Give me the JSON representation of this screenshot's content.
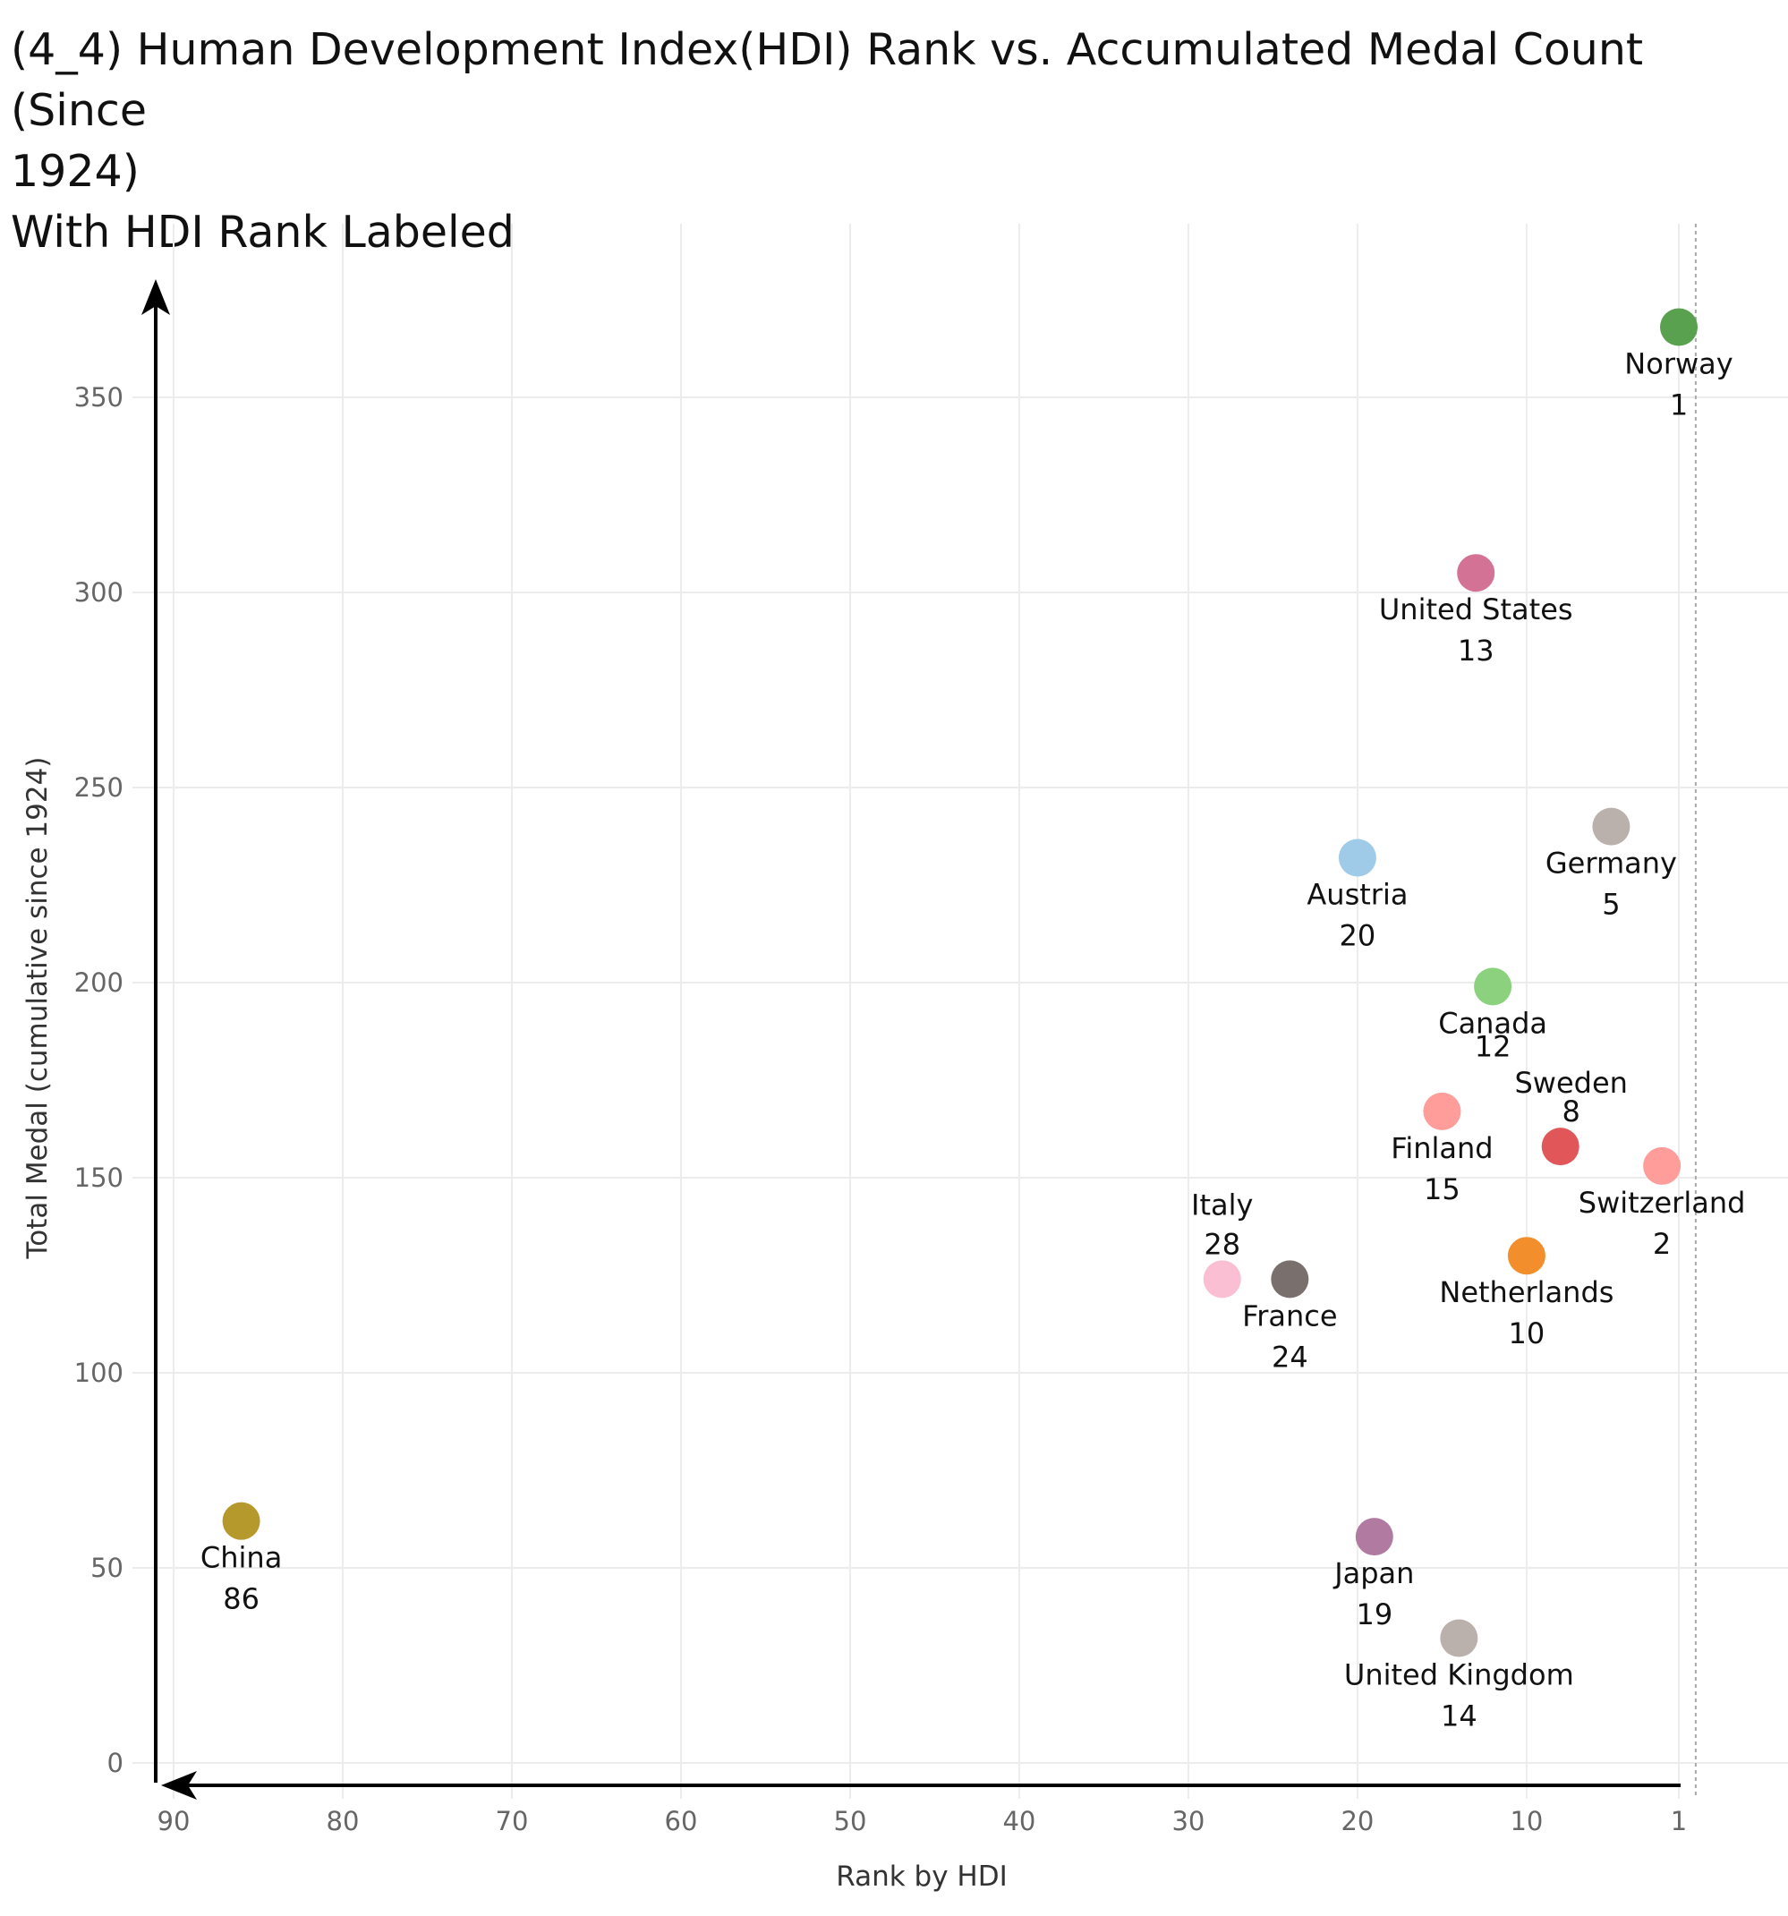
{
  "title_lines": [
    "(4_4) Human Development Index(HDI) Rank vs. Accumulated Medal Count (Since",
    "1924)",
    "With HDI Rank Labeled"
  ],
  "chart_data": {
    "type": "scatter",
    "title": "(4_4) Human Development Index(HDI) Rank vs. Accumulated Medal Count (Since 1924) With HDI Rank Labeled",
    "xlabel": "Rank by HDI",
    "ylabel": "Total Medal (cumulative since 1924)",
    "x_reversed": true,
    "xlim": [
      91,
      -8
    ],
    "ylim": [
      -5,
      375
    ],
    "x_ticks": [
      90,
      80,
      70,
      60,
      50,
      40,
      30,
      20,
      10,
      1
    ],
    "y_ticks": [
      0,
      50,
      100,
      150,
      200,
      250,
      300,
      350
    ],
    "grid": true,
    "points": [
      {
        "country": "Norway",
        "rank": 1,
        "medals": 368,
        "color": "#59a14f"
      },
      {
        "country": "United States",
        "rank": 13,
        "medals": 305,
        "color": "#d37295"
      },
      {
        "country": "Germany",
        "rank": 5,
        "medals": 240,
        "color": "#bab0ac"
      },
      {
        "country": "Austria",
        "rank": 20,
        "medals": 232,
        "color": "#a0cbe8"
      },
      {
        "country": "Canada",
        "rank": 12,
        "medals": 199,
        "color": "#8cd17d"
      },
      {
        "country": "Finland",
        "rank": 15,
        "medals": 167,
        "color": "#ff9d9a"
      },
      {
        "country": "Sweden",
        "rank": 8,
        "medals": 158,
        "color": "#e15759"
      },
      {
        "country": "Switzerland",
        "rank": 2,
        "medals": 153,
        "color": "#ff9d9a"
      },
      {
        "country": "Netherlands",
        "rank": 10,
        "medals": 130,
        "color": "#f28e2b"
      },
      {
        "country": "Italy",
        "rank": 28,
        "medals": 124,
        "color": "#fabfd2"
      },
      {
        "country": "France",
        "rank": 24,
        "medals": 124,
        "color": "#79706e"
      },
      {
        "country": "China",
        "rank": 86,
        "medals": 62,
        "color": "#b6992d"
      },
      {
        "country": "Japan",
        "rank": 19,
        "medals": 58,
        "color": "#b07aa1"
      },
      {
        "country": "United Kingdom",
        "rank": 14,
        "medals": 32,
        "color": "#bab0ac"
      }
    ]
  }
}
